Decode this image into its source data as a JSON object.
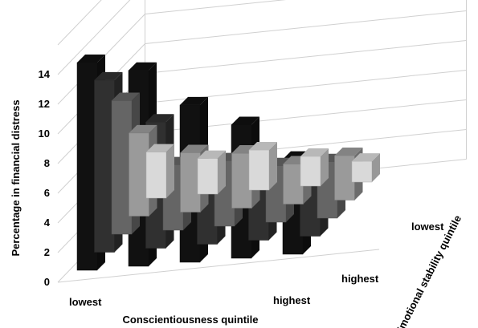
{
  "chart_data": {
    "type": "bar",
    "subtype": "3d-column-grid",
    "title": "",
    "ylabel": "Percentage in financial distress",
    "xlabel": "Conscientiousness quintile",
    "zlabel": "Emotional stability quintile",
    "ylim": [
      0,
      16
    ],
    "yticks": [
      0,
      2,
      4,
      6,
      8,
      10,
      12,
      14
    ],
    "x_tick_labels": {
      "first": "lowest",
      "last": "highest"
    },
    "z_tick_labels": {
      "first": "lowest",
      "last": "highest"
    },
    "categories": [
      "1",
      "2",
      "3",
      "4",
      "5"
    ],
    "grid": true,
    "series": [
      {
        "values": [
          14.0,
          13.2,
          10.6,
          9.0,
          6.4
        ]
      },
      {
        "values": [
          11.6,
          8.5,
          4.4,
          5.0,
          4.0
        ]
      },
      {
        "values": [
          9.0,
          4.4,
          4.4,
          3.8,
          3.8
        ]
      },
      {
        "values": [
          5.6,
          4.0,
          3.7,
          2.7,
          3.0
        ]
      },
      {
        "values": [
          3.1,
          2.4,
          2.7,
          2.0,
          1.4
        ]
      }
    ],
    "series_colors": [
      "#111111",
      "#303030",
      "#656565",
      "#9a9a9a",
      "#d9d9d9"
    ]
  }
}
